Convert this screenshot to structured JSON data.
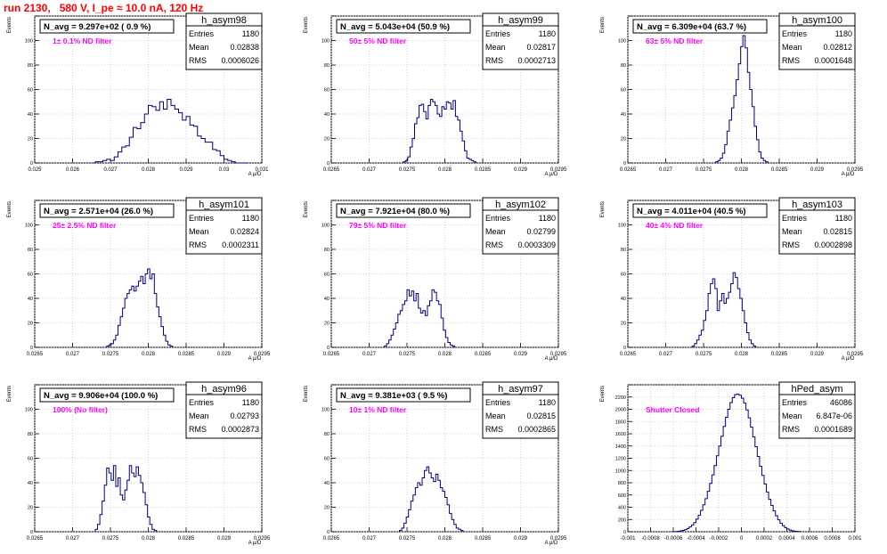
{
  "page_title": "run 2130,   580 V, I_pe ≈ 10.0 nA, 120 Hz",
  "colors": {
    "title": "#ff0000",
    "hist_line": "#000080",
    "annotation": "#ff00ff",
    "grid": "#c8c8c8"
  },
  "chart_data": [
    {
      "type": "bar",
      "name": "h_asym98",
      "stats": {
        "Entries": "1180",
        "Mean": "0.02838",
        "RMS": "0.0006026"
      },
      "navg": "N_avg = 9.297e+02 ( 0.9 %)",
      "filter": "1± 0.1% ND filter",
      "xlim": [
        0.025,
        0.031
      ],
      "ylim": [
        0,
        120
      ],
      "xticks": [
        0.025,
        0.026,
        0.027,
        0.028,
        0.029,
        0.03,
        0.031
      ],
      "xticklabels": [
        "0.025",
        "0.026",
        "0.027",
        "0.028",
        "0.029",
        "0.03",
        "0.031"
      ],
      "yticks": [
        0,
        20,
        40,
        60,
        80,
        100,
        120
      ],
      "yticklabels": [
        "0",
        "20",
        "40",
        "60",
        "80",
        "100",
        ""
      ],
      "ylabel": "Events",
      "xlabel": "A μ/D",
      "bin_start": 0.0265,
      "bin_width": 0.0001,
      "values": [
        0,
        1,
        1,
        2,
        3,
        2,
        5,
        9,
        13,
        14,
        21,
        29,
        28,
        33,
        40,
        47,
        46,
        43,
        50,
        44,
        52,
        47,
        44,
        41,
        35,
        38,
        31,
        30,
        22,
        20,
        17,
        17,
        11,
        10,
        6,
        3,
        2,
        1,
        0,
        0,
        0
      ]
    },
    {
      "type": "bar",
      "name": "h_asym99",
      "stats": {
        "Entries": "1180",
        "Mean": "0.02817",
        "RMS": "0.0002713"
      },
      "navg": "N_avg = 5.043e+04 (50.9 %)",
      "filter": "50± 5% ND filter",
      "xlim": [
        0.0265,
        0.0295
      ],
      "ylim": [
        0,
        120
      ],
      "xticks": [
        0.0265,
        0.027,
        0.0275,
        0.028,
        0.0285,
        0.029,
        0.0295
      ],
      "xticklabels": [
        "0.0265",
        "0.027",
        "0.0275",
        "0.028",
        "0.0285",
        "0.029",
        "0.0295"
      ],
      "yticks": [
        0,
        20,
        40,
        60,
        80,
        100,
        120
      ],
      "yticklabels": [
        "0",
        "20",
        "40",
        "60",
        "80",
        "100",
        ""
      ],
      "ylabel": "Events",
      "xlabel": "A μ/D",
      "bin_start": 0.02745,
      "bin_width": 3e-05,
      "values": [
        1,
        2,
        5,
        13,
        20,
        32,
        37,
        47,
        48,
        42,
        36,
        47,
        52,
        50,
        47,
        40,
        38,
        46,
        44,
        50,
        49,
        44,
        51,
        38,
        35,
        26,
        18,
        10,
        4,
        3,
        2,
        1
      ]
    },
    {
      "type": "bar",
      "name": "h_asym100",
      "stats": {
        "Entries": "1180",
        "Mean": "0.02812",
        "RMS": "0.0001648"
      },
      "navg": "N_avg = 6.309e+04 (63.7 %)",
      "filter": "63± 5% ND filter",
      "xlim": [
        0.0265,
        0.0295
      ],
      "ylim": [
        0,
        120
      ],
      "xticks": [
        0.0265,
        0.027,
        0.0275,
        0.028,
        0.0285,
        0.029,
        0.0295
      ],
      "xticklabels": [
        "0.0265",
        "0.027",
        "0.0275",
        "0.028",
        "0.0285",
        "0.029",
        "0.0295"
      ],
      "yticks": [
        0,
        20,
        40,
        60,
        80,
        100,
        120
      ],
      "yticklabels": [
        "0",
        "20",
        "40",
        "60",
        "80",
        "100",
        ""
      ],
      "ylabel": "Events",
      "xlabel": "A μ/D",
      "bin_start": 0.02766,
      "bin_width": 3e-05,
      "values": [
        1,
        2,
        4,
        8,
        15,
        26,
        35,
        45,
        55,
        68,
        81,
        95,
        104,
        94,
        74,
        60,
        46,
        30,
        19,
        9,
        4,
        2,
        1
      ]
    },
    {
      "type": "bar",
      "name": "h_asym101",
      "stats": {
        "Entries": "1180",
        "Mean": "0.02824",
        "RMS": "0.0002311"
      },
      "navg": "N_avg = 2.571e+04 (26.0 %)",
      "filter": "25± 2.5% ND filter",
      "xlim": [
        0.0265,
        0.0295
      ],
      "ylim": [
        0,
        120
      ],
      "xticks": [
        0.0265,
        0.027,
        0.0275,
        0.028,
        0.0285,
        0.029,
        0.0295
      ],
      "xticklabels": [
        "0.0265",
        "0.027",
        "0.0275",
        "0.028",
        "0.0285",
        "0.029",
        "0.0295"
      ],
      "yticks": [
        0,
        20,
        40,
        60,
        80,
        100,
        120
      ],
      "yticklabels": [
        "0",
        "20",
        "40",
        "60",
        "80",
        "100",
        ""
      ],
      "ylabel": "Events",
      "xlabel": "A μ/D",
      "bin_start": 0.02745,
      "bin_width": 3e-05,
      "values": [
        1,
        2,
        3,
        6,
        10,
        18,
        25,
        32,
        40,
        44,
        47,
        50,
        46,
        50,
        54,
        58,
        52,
        60,
        64,
        56,
        60,
        44,
        33,
        25,
        17,
        10,
        5,
        2,
        1
      ]
    },
    {
      "type": "bar",
      "name": "h_asym102",
      "stats": {
        "Entries": "1180",
        "Mean": "0.02799",
        "RMS": "0.0003309"
      },
      "navg": "N_avg = 7.921e+04 (80.0 %)",
      "filter": "79± 5% ND filter",
      "xlim": [
        0.0265,
        0.0295
      ],
      "ylim": [
        0,
        120
      ],
      "xticks": [
        0.0265,
        0.027,
        0.0275,
        0.028,
        0.0285,
        0.029,
        0.0295
      ],
      "xticklabels": [
        "0.0265",
        "0.027",
        "0.0275",
        "0.028",
        "0.0285",
        "0.029",
        "0.0295"
      ],
      "yticks": [
        0,
        20,
        40,
        60,
        80,
        100,
        120
      ],
      "yticklabels": [
        "0",
        "20",
        "40",
        "60",
        "80",
        "100",
        ""
      ],
      "ylabel": "Events",
      "xlabel": "A μ/D",
      "bin_start": 0.0272,
      "bin_width": 3e-05,
      "values": [
        1,
        3,
        6,
        10,
        15,
        20,
        27,
        30,
        35,
        38,
        47,
        42,
        46,
        38,
        44,
        32,
        28,
        30,
        26,
        34,
        38,
        47,
        45,
        38,
        35,
        24,
        14,
        8,
        4,
        2,
        1
      ]
    },
    {
      "type": "bar",
      "name": "h_asym103",
      "stats": {
        "Entries": "1180",
        "Mean": "0.02815",
        "RMS": "0.0002898"
      },
      "navg": "N_avg = 4.011e+04 (40.5 %)",
      "filter": "40± 4% ND filter",
      "xlim": [
        0.0265,
        0.0295
      ],
      "ylim": [
        0,
        120
      ],
      "xticks": [
        0.0265,
        0.027,
        0.0275,
        0.028,
        0.0285,
        0.029,
        0.0295
      ],
      "xticklabels": [
        "0.0265",
        "0.027",
        "0.0275",
        "0.028",
        "0.0285",
        "0.029",
        "0.0295"
      ],
      "yticks": [
        0,
        20,
        40,
        60,
        80,
        100,
        120
      ],
      "yticklabels": [
        "0",
        "20",
        "40",
        "60",
        "80",
        "100",
        ""
      ],
      "ylabel": "Events",
      "xlabel": "A μ/D",
      "bin_start": 0.02735,
      "bin_width": 3e-05,
      "values": [
        1,
        3,
        6,
        10,
        14,
        22,
        30,
        44,
        52,
        56,
        48,
        30,
        38,
        44,
        36,
        40,
        45,
        52,
        61,
        57,
        48,
        40,
        30,
        20,
        12,
        6,
        3,
        1
      ]
    },
    {
      "type": "bar",
      "name": "h_asym96",
      "stats": {
        "Entries": "1180",
        "Mean": "0.02793",
        "RMS": "0.0002873"
      },
      "navg": "N_avg = 9.906e+04 (100.0 %)",
      "filter": "100% (No filter)",
      "xlim": [
        0.0265,
        0.0295
      ],
      "ylim": [
        0,
        120
      ],
      "xticks": [
        0.0265,
        0.027,
        0.0275,
        0.028,
        0.0285,
        0.029,
        0.0295
      ],
      "xticklabels": [
        "0.0265",
        "0.027",
        "0.0275",
        "0.028",
        "0.0285",
        "0.029",
        "0.0295"
      ],
      "yticks": [
        0,
        20,
        40,
        60,
        80,
        100,
        120
      ],
      "yticklabels": [
        "0",
        "20",
        "40",
        "60",
        "80",
        "100",
        ""
      ],
      "ylabel": "Events",
      "xlabel": "A μ/D",
      "bin_start": 0.0273,
      "bin_width": 3e-05,
      "values": [
        2,
        6,
        14,
        25,
        38,
        52,
        48,
        42,
        54,
        37,
        44,
        30,
        26,
        34,
        42,
        54,
        48,
        45,
        53,
        46,
        40,
        32,
        22,
        12,
        6,
        2,
        1
      ]
    },
    {
      "type": "bar",
      "name": "h_asym97",
      "stats": {
        "Entries": "1180",
        "Mean": "0.02815",
        "RMS": "0.0002865"
      },
      "navg": "N_avg = 9.381e+03 ( 9.5 %)",
      "filter": "10± 1% ND filter",
      "xlim": [
        0.0265,
        0.0295
      ],
      "ylim": [
        0,
        120
      ],
      "xticks": [
        0.0265,
        0.027,
        0.0275,
        0.028,
        0.0285,
        0.029,
        0.0295
      ],
      "xticklabels": [
        "0.0265",
        "0.027",
        "0.0275",
        "0.028",
        "0.0285",
        "0.029",
        "0.0295"
      ],
      "yticks": [
        0,
        20,
        40,
        60,
        80,
        100,
        120
      ],
      "yticklabels": [
        "0",
        "20",
        "40",
        "60",
        "80",
        "100",
        ""
      ],
      "ylabel": "Events",
      "xlabel": "A μ/D",
      "bin_start": 0.0274,
      "bin_width": 3e-05,
      "values": [
        1,
        3,
        7,
        12,
        18,
        25,
        30,
        36,
        40,
        38,
        44,
        50,
        53,
        48,
        44,
        41,
        47,
        42,
        36,
        33,
        28,
        22,
        15,
        10,
        6,
        3,
        2,
        1
      ]
    },
    {
      "type": "bar",
      "name": "hPed_asym",
      "stats": {
        "Entries": "46086",
        "Mean": "6.847e-06",
        "RMS": "0.0001689"
      },
      "navg": "",
      "filter": "Shutter Closed",
      "xlim": [
        -0.001,
        0.001
      ],
      "ylim": [
        0,
        2400
      ],
      "xticks": [
        -0.001,
        -0.0008,
        -0.0006,
        -0.0004,
        -0.0002,
        0,
        0.0002,
        0.0004,
        0.0006,
        0.0008,
        0.001
      ],
      "xticklabels": [
        "-0.001",
        "-0.0008",
        "-0.0006",
        "-0.0004",
        "-0.0002",
        "0",
        "0.0002",
        "0.0004",
        "0.0006",
        "0.0008",
        "0.001"
      ],
      "yticks": [
        0,
        200,
        400,
        600,
        800,
        1000,
        1200,
        1400,
        1600,
        1800,
        2000,
        2200,
        2400
      ],
      "yticklabels": [
        "0",
        "200",
        "400",
        "600",
        "800",
        "1000",
        "1200",
        "1400",
        "1600",
        "1800",
        "2000",
        "2200",
        ""
      ],
      "ylabel": "Events",
      "xlabel": "",
      "bin_start": -0.0006,
      "bin_width": 2e-05,
      "values": [
        2,
        4,
        8,
        14,
        22,
        35,
        52,
        78,
        110,
        150,
        205,
        270,
        350,
        440,
        540,
        660,
        790,
        930,
        1080,
        1240,
        1400,
        1560,
        1720,
        1870,
        2000,
        2110,
        2190,
        2240,
        2250,
        2230,
        2180,
        2100,
        1990,
        1860,
        1710,
        1550,
        1390,
        1230,
        1070,
        920,
        780,
        650,
        530,
        430,
        340,
        260,
        195,
        140,
        100,
        68,
        45,
        28,
        17,
        10,
        5,
        3
      ]
    }
  ]
}
